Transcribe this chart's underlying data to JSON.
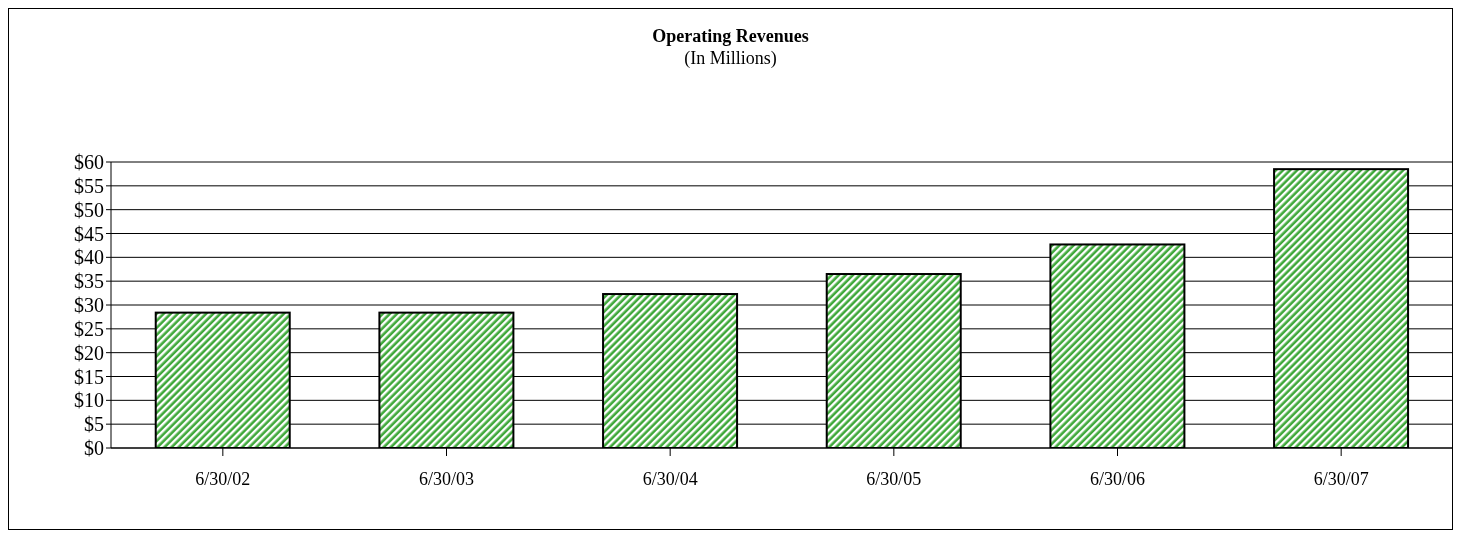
{
  "chart_data": {
    "type": "bar",
    "title": "Operating Revenues",
    "subtitle": "(In Millions)",
    "categories": [
      "6/30/02",
      "6/30/03",
      "6/30/04",
      "6/30/05",
      "6/30/06",
      "6/30/07"
    ],
    "values": [
      28.4,
      28.4,
      32.3,
      36.5,
      42.7,
      58.5
    ],
    "color": "#3fa83a",
    "ylim": [
      0,
      60
    ],
    "yticks": [
      {
        "value": 0,
        "label": "$0"
      },
      {
        "value": 5,
        "label": "$5"
      },
      {
        "value": 10,
        "label": "$10"
      },
      {
        "value": 15,
        "label": "$15"
      },
      {
        "value": 20,
        "label": "$20"
      },
      {
        "value": 25,
        "label": "$25"
      },
      {
        "value": 30,
        "label": "$30"
      },
      {
        "value": 35,
        "label": "$35"
      },
      {
        "value": 40,
        "label": "$40"
      },
      {
        "value": 45,
        "label": "$45"
      },
      {
        "value": 50,
        "label": "$50"
      },
      {
        "value": 55,
        "label": "$55"
      },
      {
        "value": 60,
        "label": "$60"
      }
    ],
    "grid": "y",
    "legend": false
  }
}
